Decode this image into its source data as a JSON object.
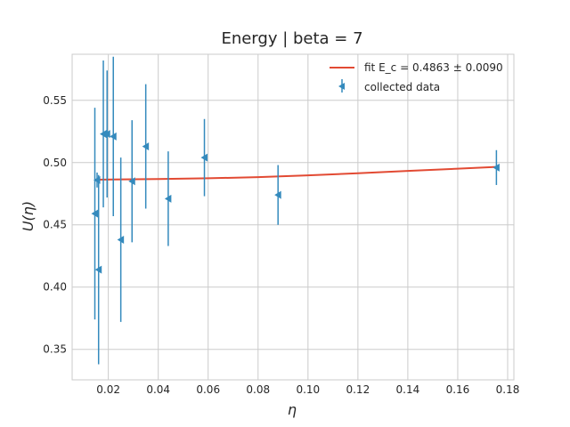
{
  "chart_data": {
    "type": "scatter",
    "title": "Energy | beta = 7",
    "xlabel": "η",
    "ylabel": "U(η)",
    "xlim": [
      0.0055,
      0.1825
    ],
    "ylim": [
      0.3255,
      0.587
    ],
    "xticks": [
      0.02,
      0.04,
      0.06,
      0.08,
      0.1,
      0.12,
      0.14,
      0.16,
      0.18
    ],
    "xtick_labels": [
      "0.02",
      "0.04",
      "0.06",
      "0.08",
      "0.10",
      "0.12",
      "0.14",
      "0.16",
      "0.18"
    ],
    "yticks": [
      0.35,
      0.4,
      0.45,
      0.5,
      0.55
    ],
    "ytick_labels": [
      "0.35",
      "0.40",
      "0.45",
      "0.50",
      "0.55"
    ],
    "grid": true,
    "legend_position": "top-right",
    "colors": {
      "fit": "#E24A33",
      "data": "#348ABD",
      "grid": "#cbcbcb"
    },
    "series": [
      {
        "name": "fit E_c = 0.4863 ± 0.0090",
        "kind": "line",
        "x": [
          0.0146,
          0.04,
          0.06,
          0.08,
          0.1,
          0.12,
          0.14,
          0.16,
          0.1755
        ],
        "y": [
          0.4863,
          0.4868,
          0.4874,
          0.4883,
          0.4897,
          0.4914,
          0.4933,
          0.4951,
          0.4965
        ]
      },
      {
        "name": "collected data",
        "kind": "errorbar",
        "marker": "triangle-left",
        "points": [
          {
            "x": 0.0146,
            "y": 0.459,
            "err": 0.085
          },
          {
            "x": 0.0155,
            "y": 0.486,
            "err": 0.006
          },
          {
            "x": 0.0161,
            "y": 0.414,
            "err": 0.076
          },
          {
            "x": 0.018,
            "y": 0.523,
            "err": 0.059
          },
          {
            "x": 0.0195,
            "y": 0.523,
            "err": 0.051
          },
          {
            "x": 0.022,
            "y": 0.521,
            "err": 0.064
          },
          {
            "x": 0.025,
            "y": 0.438,
            "err": 0.066
          },
          {
            "x": 0.0295,
            "y": 0.485,
            "err": 0.049
          },
          {
            "x": 0.035,
            "y": 0.513,
            "err": 0.05
          },
          {
            "x": 0.044,
            "y": 0.471,
            "err": 0.038
          },
          {
            "x": 0.0585,
            "y": 0.504,
            "err": 0.031
          },
          {
            "x": 0.088,
            "y": 0.474,
            "err": 0.024
          },
          {
            "x": 0.1755,
            "y": 0.496,
            "err": 0.014
          }
        ]
      }
    ]
  }
}
